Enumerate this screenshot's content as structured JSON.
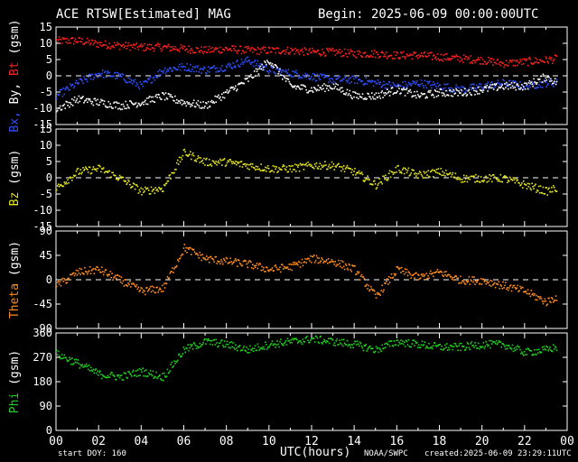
{
  "header": {
    "title": "ACE RTSW[Estimated] MAG",
    "begin": "Begin: 2025-06-09 00:00:00UTC"
  },
  "footer": {
    "start_doy": "start DOY: 160",
    "xlabel": "UTC(hours)",
    "source": "NOAA/SWPC",
    "created": "created:2025-06-09 23:29:11UTC"
  },
  "colors": {
    "background": "#000000",
    "axis": "#ffffff",
    "bt": "#ff2020",
    "bx": "#3050ff",
    "by": "#ffffff",
    "bz": "#e6e620",
    "theta": "#ff8c20",
    "phi": "#20d020"
  },
  "chart_data": [
    {
      "type": "scatter",
      "panel": "b-components",
      "ylabel_parts": [
        "Bx,",
        " By,",
        " Bt"
      ],
      "ylabel_units": " (gsm)",
      "ylim": [
        -15,
        15
      ],
      "yticks": [
        15,
        10,
        5,
        0,
        -5,
        -10,
        -15
      ],
      "zero_line": true,
      "x_hours": [
        0,
        1,
        2,
        3,
        4,
        5,
        6,
        7,
        8,
        9,
        10,
        11,
        12,
        13,
        14,
        15,
        16,
        17,
        18,
        19,
        20,
        21,
        22,
        23,
        23.5
      ],
      "series": [
        {
          "name": "Bt",
          "color": "#ff2020",
          "values": [
            11,
            11,
            10,
            9.5,
            9,
            9,
            8.5,
            8,
            8.5,
            8,
            8,
            8,
            7.5,
            7.5,
            7,
            7,
            6.5,
            6.5,
            6,
            5.5,
            5,
            4,
            4.5,
            5,
            5.5
          ]
        },
        {
          "name": "Bx",
          "color": "#3050ff",
          "values": [
            -6,
            -2,
            1,
            0,
            -3,
            2,
            3,
            2,
            3,
            5,
            2,
            1,
            0,
            -1,
            -1,
            -2,
            -3,
            -2,
            -3,
            -4,
            -3,
            -2,
            -3,
            -2,
            -2
          ]
        },
        {
          "name": "By",
          "color": "#ffffff",
          "values": [
            -10,
            -7,
            -8,
            -9,
            -8,
            -6,
            -8,
            -9,
            -5,
            -1,
            5,
            -3,
            -4,
            -3,
            -6,
            -6,
            -4,
            -6,
            -5,
            -5,
            -4,
            -3,
            -3,
            0,
            -2
          ]
        }
      ]
    },
    {
      "type": "scatter",
      "panel": "bz",
      "ylabel": "Bz (gsm)",
      "ylim": [
        -15,
        15
      ],
      "yticks": [
        15,
        10,
        5,
        0,
        -5,
        -10,
        -15
      ],
      "zero_line": true,
      "x_hours": [
        0,
        1,
        2,
        3,
        4,
        5,
        6,
        7,
        8,
        9,
        10,
        11,
        12,
        13,
        14,
        15,
        16,
        17,
        18,
        19,
        20,
        21,
        22,
        23,
        23.5
      ],
      "series": [
        {
          "name": "Bz",
          "color": "#e6e620",
          "values": [
            -3,
            2,
            3,
            0,
            -4,
            -3,
            8,
            5,
            5,
            4,
            3,
            3,
            4,
            4,
            2,
            -2,
            3,
            1,
            2,
            0,
            0,
            0,
            -2,
            -4,
            -3
          ]
        }
      ]
    },
    {
      "type": "scatter",
      "panel": "theta",
      "ylabel": "Theta (gsm)",
      "ylim": [
        -90,
        90
      ],
      "yticks": [
        90,
        45,
        0,
        -45,
        -90
      ],
      "zero_line": true,
      "x_hours": [
        0,
        1,
        2,
        3,
        4,
        5,
        6,
        7,
        8,
        9,
        10,
        11,
        12,
        13,
        14,
        15,
        16,
        17,
        18,
        19,
        20,
        21,
        22,
        23,
        23.5
      ],
      "series": [
        {
          "name": "Theta",
          "color": "#ff8c20",
          "values": [
            -10,
            15,
            20,
            0,
            -20,
            -15,
            60,
            40,
            35,
            30,
            20,
            25,
            40,
            35,
            20,
            -30,
            20,
            5,
            15,
            0,
            0,
            -10,
            -20,
            -40,
            -30
          ]
        }
      ]
    },
    {
      "type": "scatter",
      "panel": "phi",
      "ylabel": "Phi (gsm)",
      "ylim": [
        0,
        360
      ],
      "yticks": [
        360,
        270,
        180,
        90,
        0
      ],
      "zero_line": false,
      "xticks": [
        "00",
        "02",
        "04",
        "06",
        "08",
        "10",
        "12",
        "14",
        "16",
        "18",
        "20",
        "22",
        "00"
      ],
      "x_hours": [
        0,
        1,
        2,
        3,
        4,
        5,
        6,
        7,
        8,
        9,
        10,
        11,
        12,
        13,
        14,
        15,
        16,
        17,
        18,
        19,
        20,
        21,
        22,
        23,
        23.5
      ],
      "series": [
        {
          "name": "Phi",
          "color": "#20d020",
          "values": [
            285,
            250,
            210,
            200,
            220,
            200,
            300,
            330,
            320,
            300,
            320,
            330,
            340,
            330,
            320,
            300,
            330,
            320,
            310,
            310,
            320,
            320,
            290,
            300,
            310
          ]
        }
      ]
    }
  ]
}
